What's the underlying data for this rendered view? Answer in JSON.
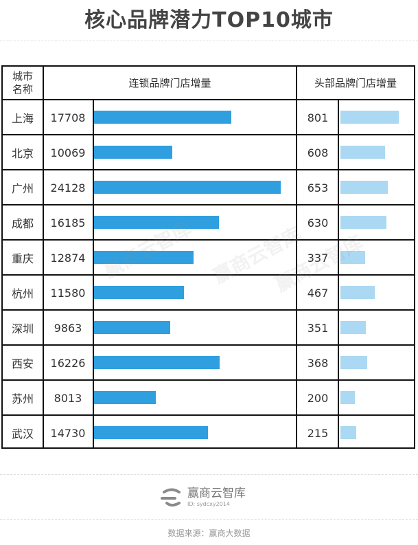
{
  "title": "核心品牌潜力TOP10城市",
  "table": {
    "header": {
      "city": "城市\n名称",
      "chain": "连锁品牌门店增量",
      "head": "头部品牌门店增量"
    }
  },
  "colors": {
    "chain_bar": "#2f9fe0",
    "head_bar": "#abd8f2"
  },
  "chart_data": {
    "type": "table",
    "categories": [
      "上海",
      "北京",
      "广州",
      "成都",
      "重庆",
      "杭州",
      "深圳",
      "西安",
      "苏州",
      "武汉"
    ],
    "series": [
      {
        "name": "连锁品牌门店增量",
        "values": [
          17708,
          10069,
          24128,
          16185,
          12874,
          11580,
          9863,
          16226,
          8013,
          14730
        ]
      },
      {
        "name": "头部品牌门店增量",
        "values": [
          801,
          608,
          653,
          630,
          337,
          467,
          351,
          368,
          200,
          215
        ]
      }
    ]
  },
  "watermark": "赢商云智库",
  "footer": {
    "logo_name": "赢商云智库",
    "logo_id": "ID: sydcxy2014",
    "source": "数据来源：赢商大数据"
  }
}
